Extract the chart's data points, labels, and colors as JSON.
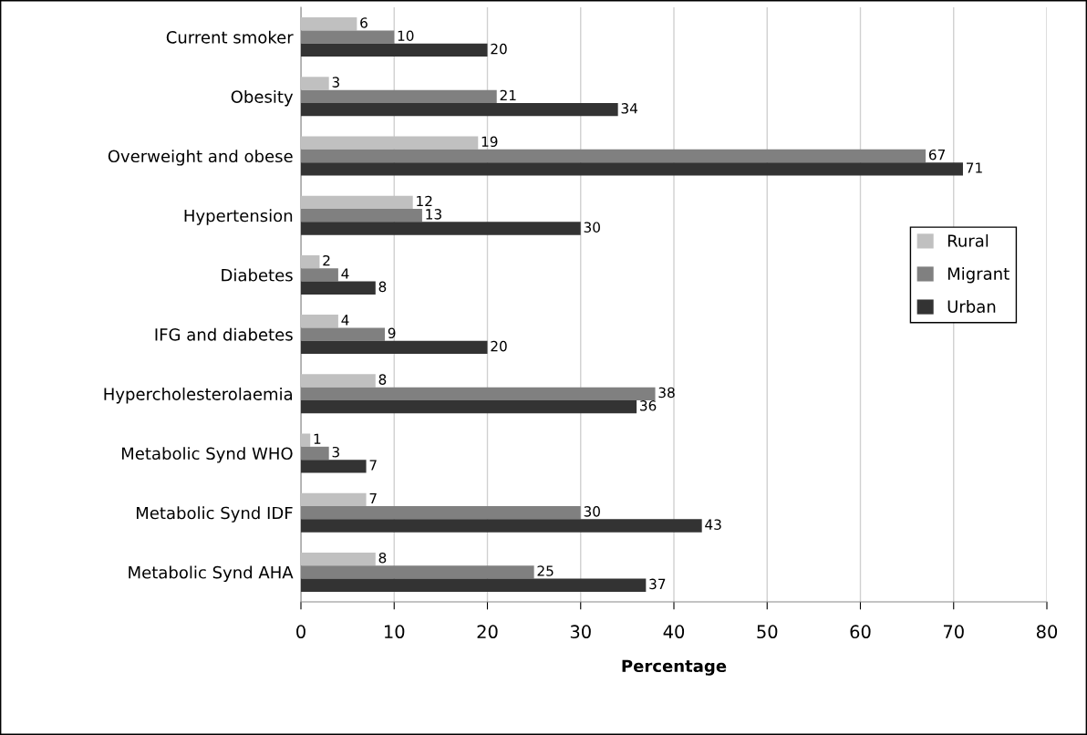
{
  "chart_data": {
    "type": "bar",
    "orientation": "horizontal",
    "xlabel": "Percentage",
    "categories": [
      "Current smoker",
      "Obesity",
      "Overweight and obese",
      "Hypertension",
      "Diabetes",
      "IFG and diabetes",
      "Hypercholesterolaemia",
      "Metabolic Synd WHO",
      "Metabolic Synd IDF",
      "Metabolic Synd AHA"
    ],
    "series": [
      {
        "name": "Rural",
        "color": "#c0c0c0",
        "values": [
          6,
          3,
          19,
          12,
          2,
          4,
          8,
          1,
          7,
          8
        ]
      },
      {
        "name": "Migrant",
        "color": "#808080",
        "values": [
          10,
          21,
          67,
          13,
          4,
          9,
          38,
          3,
          30,
          25
        ]
      },
      {
        "name": "Urban",
        "color": "#333333",
        "values": [
          20,
          34,
          71,
          30,
          8,
          20,
          36,
          7,
          43,
          37
        ]
      }
    ],
    "xlim": [
      0,
      80
    ],
    "xticks": [
      0,
      10,
      20,
      30,
      40,
      50,
      60,
      70,
      80
    ],
    "grid": "x",
    "legend": "right",
    "data_labels": true
  }
}
